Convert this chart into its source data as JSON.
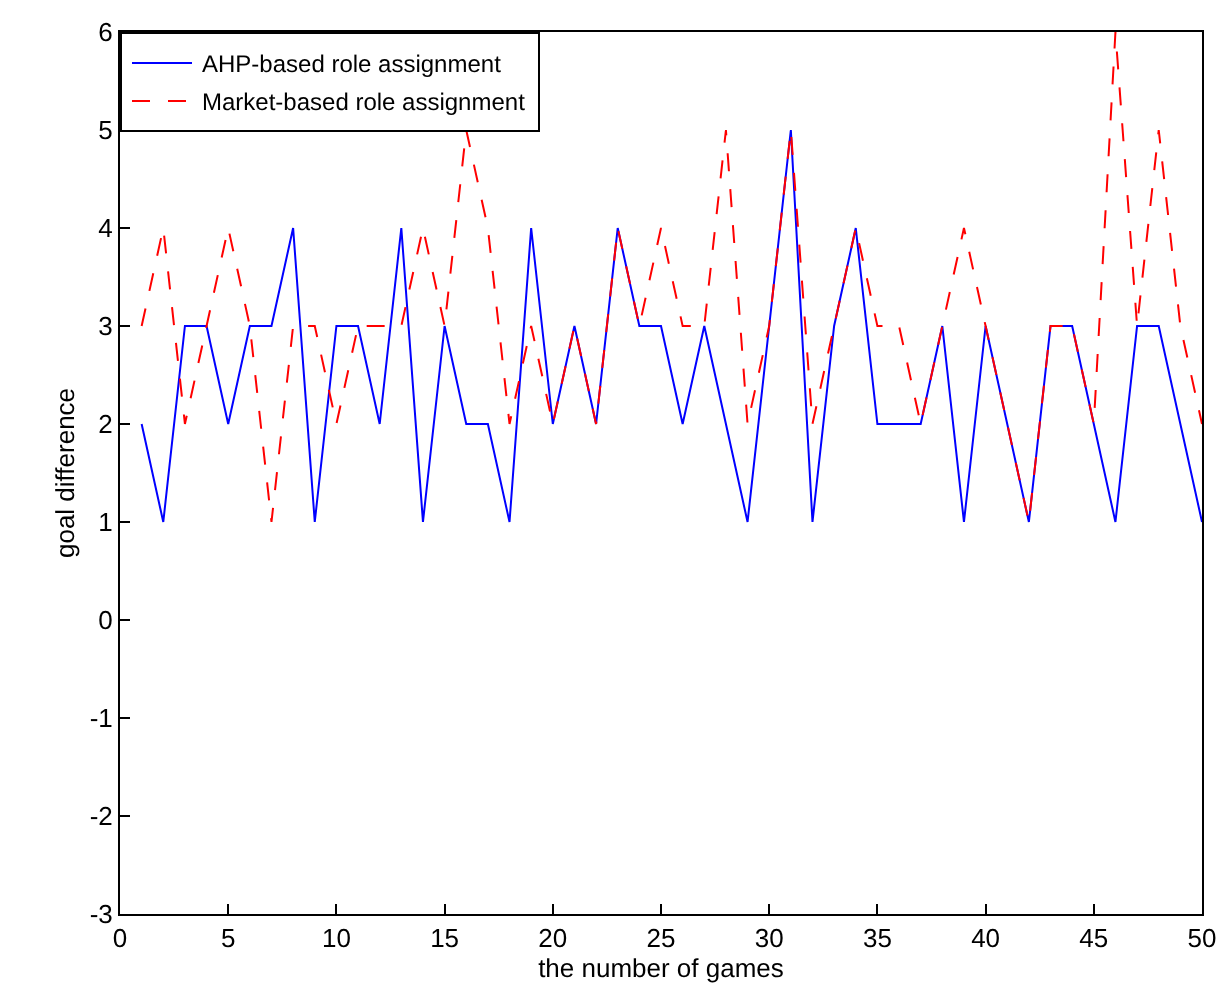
{
  "chart_data": {
    "type": "line",
    "xlabel": "the number of games",
    "ylabel": "goal difference",
    "x": [
      1,
      2,
      3,
      4,
      5,
      6,
      7,
      8,
      9,
      10,
      11,
      12,
      13,
      14,
      15,
      16,
      17,
      18,
      19,
      20,
      21,
      22,
      23,
      24,
      25,
      26,
      27,
      28,
      29,
      30,
      31,
      32,
      33,
      34,
      35,
      36,
      37,
      38,
      39,
      40,
      41,
      42,
      43,
      44,
      45,
      46,
      47,
      48,
      49,
      50
    ],
    "series": [
      {
        "name": "AHP-based role assignment",
        "color": "#0000ff",
        "line_style": "solid",
        "values": [
          2,
          1,
          3,
          3,
          2,
          3,
          3,
          4,
          1,
          3,
          3,
          2,
          4,
          1,
          3,
          2,
          2,
          1,
          4,
          2,
          3,
          2,
          4,
          3,
          3,
          2,
          3,
          2,
          1,
          3,
          5,
          1,
          3,
          4,
          2,
          2,
          2,
          3,
          1,
          3,
          2,
          1,
          3,
          3,
          2,
          1,
          3,
          3,
          2,
          1
        ]
      },
      {
        "name": "Market-based role assignment",
        "color": "#ff0000",
        "line_style": "dashed",
        "values": [
          3,
          4,
          2,
          3,
          4,
          3,
          1,
          3,
          3,
          2,
          3,
          3,
          3,
          4,
          3,
          5,
          4,
          2,
          3,
          2,
          3,
          2,
          4,
          3,
          4,
          3,
          3,
          5,
          2,
          3,
          5,
          2,
          3,
          4,
          3,
          3,
          2,
          3,
          4,
          3,
          2,
          1,
          3,
          3,
          2,
          6,
          3,
          5,
          3,
          2
        ]
      }
    ],
    "xlim": [
      0,
      50
    ],
    "xticks": [
      0,
      5,
      10,
      15,
      20,
      25,
      30,
      35,
      40,
      45,
      50
    ],
    "ylim": [
      -3,
      6
    ],
    "yticks": [
      -3,
      -2,
      -1,
      0,
      1,
      2,
      3,
      4,
      5,
      6
    ],
    "legend": "top left",
    "marker": "none"
  }
}
